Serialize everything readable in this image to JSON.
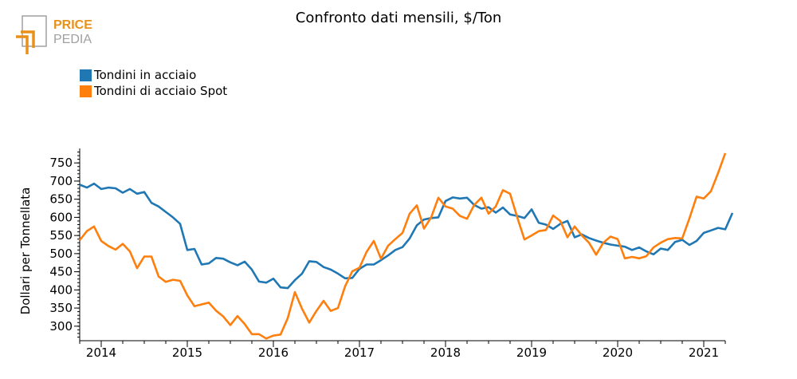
{
  "logo": {
    "word1": "PRICE",
    "word2": "PEDIA",
    "accent": "#e8901a",
    "gray": "#a0a0a0"
  },
  "chart_data": {
    "type": "line",
    "title": "Confronto dati mensili, $/Ton",
    "xlabel": "",
    "ylabel": "Dollari per Tonnellata",
    "xlim": [
      2013.75,
      2021.25
    ],
    "ylim": [
      260,
      790
    ],
    "x_ticks": [
      2014,
      2015,
      2016,
      2017,
      2018,
      2019,
      2020,
      2021
    ],
    "x_tick_labels": [
      "2014",
      "2015",
      "2016",
      "2017",
      "2018",
      "2019",
      "2020",
      "2021"
    ],
    "y_ticks": [
      300,
      350,
      400,
      450,
      500,
      550,
      600,
      650,
      700,
      750
    ],
    "y_tick_labels": [
      "300",
      "350",
      "400",
      "450",
      "500",
      "550",
      "600",
      "650",
      "700",
      "750"
    ],
    "grid": false,
    "legend_position": "top-left",
    "x_start": "2013-10",
    "x_step": "1 month",
    "series": [
      {
        "name": "Tondini in acciaio",
        "color": "#1f77b4",
        "values": [
          690,
          682,
          693,
          678,
          682,
          680,
          668,
          678,
          665,
          670,
          640,
          630,
          615,
          600,
          582,
          510,
          513,
          470,
          473,
          488,
          486,
          476,
          468,
          478,
          456,
          423,
          420,
          431,
          407,
          405,
          427,
          445,
          479,
          477,
          463,
          456,
          445,
          432,
          433,
          458,
          470,
          470,
          482,
          495,
          510,
          518,
          542,
          578,
          594,
          598,
          600,
          645,
          655,
          652,
          654,
          634,
          624,
          628,
          613,
          627,
          608,
          604,
          598,
          622,
          585,
          580,
          568,
          582,
          590,
          545,
          553,
          543,
          536,
          530,
          525,
          522,
          519,
          510,
          517,
          506,
          498,
          514,
          510,
          532,
          538,
          524,
          535,
          557,
          564,
          571,
          567,
          612
        ]
      },
      {
        "name": "Tondini di acciaio Spot",
        "color": "#ff7f0e",
        "values": [
          537,
          562,
          575,
          535,
          521,
          511,
          527,
          506,
          460,
          492,
          492,
          437,
          422,
          428,
          425,
          385,
          355,
          360,
          365,
          343,
          327,
          303,
          328,
          306,
          278,
          278,
          266,
          274,
          277,
          322,
          394,
          348,
          310,
          342,
          370,
          342,
          350,
          410,
          451,
          461,
          505,
          535,
          486,
          522,
          540,
          557,
          610,
          633,
          569,
          600,
          654,
          630,
          624,
          604,
          596,
          634,
          654,
          610,
          630,
          675,
          665,
          600,
          539,
          550,
          562,
          565,
          605,
          590,
          545,
          575,
          550,
          530,
          497,
          530,
          547,
          540,
          487,
          491,
          487,
          493,
          517,
          530,
          540,
          543,
          542,
          597,
          657,
          652,
          672,
          722,
          777
        ]
      }
    ]
  }
}
